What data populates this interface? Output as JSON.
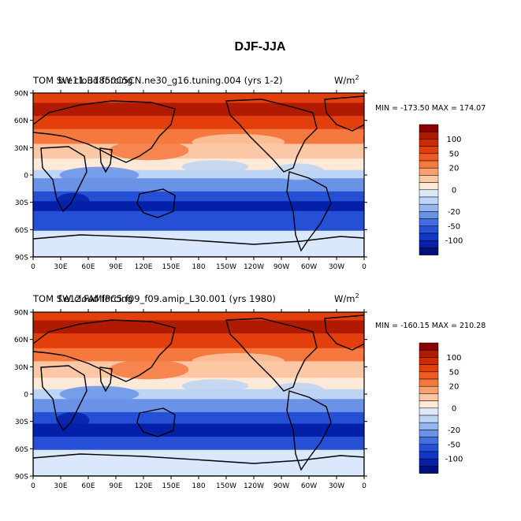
{
  "figure": {
    "title": "DJF-JJA",
    "units_label": "W/m",
    "units_superscript": "2"
  },
  "panels": [
    {
      "id": "top",
      "overlapping_labels": [
        "TOM  SW cloud forcing",
        "b.e11.B1850C5CN.ne30_g16.tuning.004 (yrs 1-2)"
      ],
      "min_max": "MIN = -173.50 MAX = 174.07",
      "variable": "TOM SW cloud forcing",
      "case": "b.e11.B1850C5CN.ne30_g16.tuning.004 (yrs 1-2)"
    },
    {
      "id": "bottom",
      "overlapping_labels": [
        "TOM  SW cloud forcing",
        "f.e12.FAMIPC5.f09_f09.amip_L30.001 (yrs 1980)"
      ],
      "min_max": "MIN = -160.15 MAX = 210.28",
      "variable": "TOM SW cloud forcing",
      "case": "f.e12.FAMIPC5.f09_f09.amip_L30.001 (yrs 1980)"
    }
  ],
  "axes": {
    "lat_ticks": [
      "90N",
      "60N",
      "30N",
      "0",
      "30S",
      "60S",
      "90S"
    ],
    "lon_ticks": [
      "0",
      "30E",
      "60E",
      "90E",
      "120E",
      "150E",
      "180",
      "150W",
      "120W",
      "90W",
      "60W",
      "30W",
      "0"
    ]
  },
  "colorbar": {
    "tick_labels": [
      "100",
      "50",
      "20",
      "0",
      "-20",
      "-50",
      "-100"
    ],
    "colors": [
      "#8b0000",
      "#b01a00",
      "#cc2a00",
      "#e23f0c",
      "#ef5a22",
      "#f5793f",
      "#f9a06f",
      "#fcc7a5",
      "#fde9d8",
      "#dbe9fa",
      "#bdd4f4",
      "#95b7ef",
      "#6a93e8",
      "#416ee0",
      "#2550d6",
      "#1237c6",
      "#0520a8",
      "#00107a"
    ]
  },
  "map_palette": {
    "polar_ice": "#d9e8fa",
    "neg_light": "#bdd4f4",
    "neg_mid": "#6a93e8",
    "neg_strong": "#2550d6",
    "neg_max": "#0520a8",
    "pos_light": "#fcc7a5",
    "pos_mid": "#f5793f",
    "pos_strong": "#e23f0c",
    "pos_max": "#b01a00",
    "neutral": "#fde9d8"
  }
}
